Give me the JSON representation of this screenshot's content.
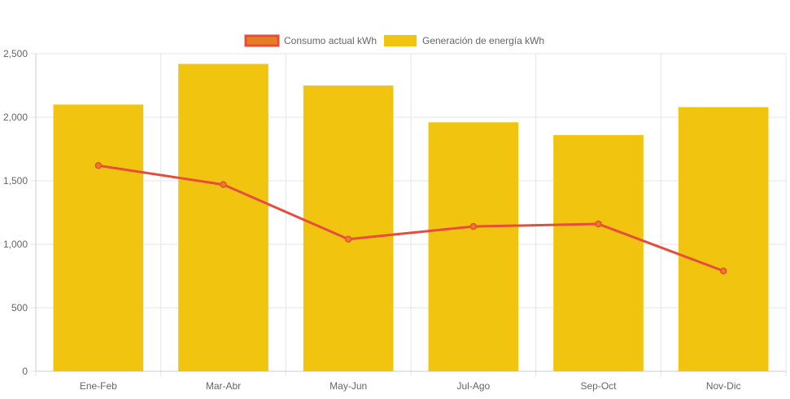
{
  "chart_data": {
    "type": "bar",
    "categories": [
      "Ene-Feb",
      "Mar-Abr",
      "May-Jun",
      "Jul-Ago",
      "Sep-Oct",
      "Nov-Dic"
    ],
    "series": [
      {
        "name": "Consumo actual kWh",
        "type": "line",
        "values": [
          1620,
          1470,
          1040,
          1140,
          1160,
          790
        ],
        "color": "#e74c3c",
        "fill": "#e67e22"
      },
      {
        "name": "Generación de energía kWh",
        "type": "bar",
        "values": [
          2100,
          2420,
          2250,
          1960,
          1860,
          2080
        ],
        "color": "#f1c40f"
      }
    ],
    "ylim": [
      0,
      2500
    ],
    "yticks": [
      0,
      500,
      1000,
      1500,
      2000,
      2500
    ],
    "ytick_labels": [
      "0",
      "500",
      "1,000",
      "1,500",
      "2,000",
      "2,500"
    ],
    "grid": true,
    "legend_position": "top-center",
    "xlabel": "",
    "ylabel": "",
    "title": ""
  }
}
